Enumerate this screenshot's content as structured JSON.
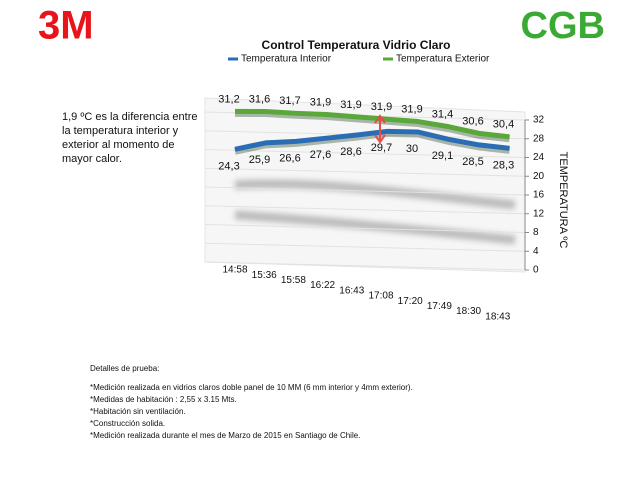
{
  "header": {
    "logo_left": "3M",
    "logo_right": "CGB"
  },
  "annotation": [
    "1,9 ºC es la diferencia entre",
    "la temperatura interior y",
    "exterior al momento de",
    "mayor calor."
  ],
  "details": {
    "title": "Detalles de prueba:",
    "items": [
      "*Medición realizada en vidrios claros doble panel de 10 MM (6 mm interior y 4mm exterior).",
      "*Medidas de habitación : 2,55 x 3.15 Mts.",
      "*Habitación sin ventilación.",
      "*Construcción solida.",
      "*Medición realizada durante el mes de Marzo de 2015 en Santiago de Chile."
    ]
  },
  "chart_data": {
    "type": "line",
    "title": "Control Temperatura Vidrio Claro",
    "y_label": "TEMPERATURA ºC",
    "categories": [
      "14:58",
      "15:36",
      "15:58",
      "16:22",
      "16:43",
      "17:08",
      "17:20",
      "17:49",
      "18:30",
      "18:43"
    ],
    "series": [
      {
        "name": "Temperatura Interior",
        "color": "#2a6db5",
        "values": [
          24.3,
          25.9,
          26.6,
          27.6,
          28.6,
          29.7,
          30,
          29.1,
          28.5,
          28.3
        ],
        "value_labels": [
          "24,3",
          "25,9",
          "26,6",
          "27,6",
          "28,6",
          "29,7",
          "30",
          "29,1",
          "28,5",
          "28,3"
        ]
      },
      {
        "name": "Temperatura Exterior",
        "color": "#5aa83a",
        "values": [
          31.2,
          31.6,
          31.7,
          31.9,
          31.9,
          31.9,
          31.9,
          31.4,
          30.6,
          30.4
        ],
        "value_labels": [
          "31,2",
          "31,6",
          "31,7",
          "31,9",
          "31,9",
          "31,9",
          "31,9",
          "31,4",
          "30,6",
          "30,4"
        ]
      }
    ],
    "ylim": [
      0,
      32
    ],
    "yticks": [
      0,
      4,
      8,
      12,
      16,
      20,
      24,
      28,
      32
    ],
    "grid": true,
    "legend": "top"
  }
}
